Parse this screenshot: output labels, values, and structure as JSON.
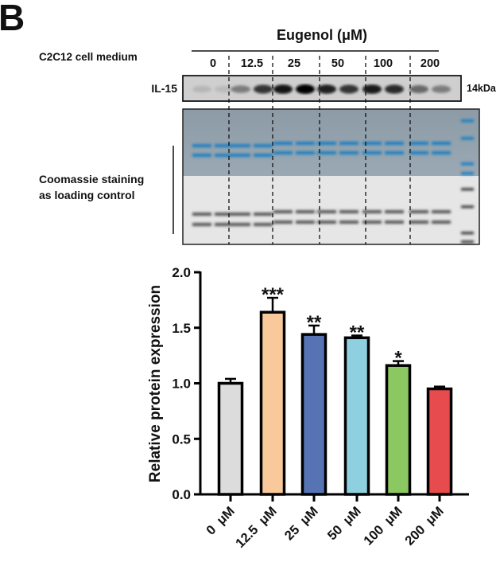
{
  "panel_label": "B",
  "blot": {
    "treatment_title": "Eugenol (μM)",
    "row_label": "C2C12 cell medium",
    "lanes": [
      "0",
      "12.5",
      "25",
      "50",
      "100",
      "200"
    ],
    "target_label": "IL-15",
    "size_label": "14kDa",
    "loading_label_line1": "Coomassie staining",
    "loading_label_line2": "as loading control"
  },
  "chart_data": {
    "type": "bar",
    "categories": [
      "0  μM",
      "12.5  μM",
      "25  μM",
      "50  μM",
      "100  μM",
      "200  μM"
    ],
    "values": [
      1.0,
      1.64,
      1.44,
      1.41,
      1.16,
      0.95
    ],
    "error": [
      0.04,
      0.13,
      0.08,
      0.02,
      0.04,
      0.02
    ],
    "significance": [
      "",
      "***",
      "**",
      "**",
      "*",
      ""
    ],
    "colors": [
      "#dcdcdc",
      "#f9c89b",
      "#5674b4",
      "#8fd0e0",
      "#8cc862",
      "#e84b4e"
    ],
    "ylabel": "Relative protein  expression",
    "ylim": [
      0,
      2.0
    ],
    "yticks": [
      "0.0",
      "0.5",
      "1.0",
      "1.5",
      "2.0"
    ],
    "grid": false
  }
}
